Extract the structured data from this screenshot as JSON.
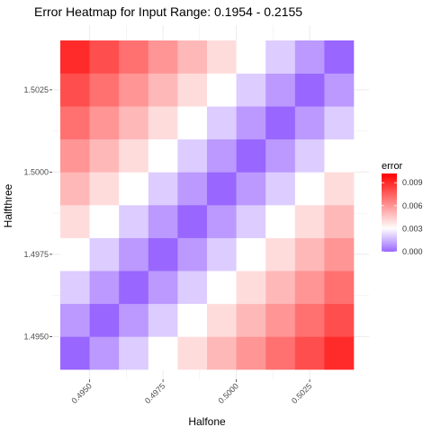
{
  "chart_data": {
    "type": "heatmap",
    "title": "Error Heatmap for Input Range: 0.1954 - 0.2155",
    "xlabel": "Halfone",
    "ylabel": "Halfthree",
    "x": [
      0.4945,
      0.4955,
      0.4965,
      0.4975,
      0.4985,
      0.4995,
      0.5005,
      0.5015,
      0.5025,
      0.5035
    ],
    "y": [
      1.4945,
      1.4955,
      1.4965,
      1.4975,
      1.4985,
      1.4995,
      1.5005,
      1.5015,
      1.5025,
      1.5035
    ],
    "xlim": [
      0.494,
      0.504
    ],
    "ylim": [
      1.494,
      1.504
    ],
    "x_ticks": [
      0.495,
      0.4975,
      0.5,
      0.5025
    ],
    "x_tick_labels": [
      "0.4950",
      "0.4975",
      "0.5000",
      "0.5025"
    ],
    "y_ticks": [
      1.495,
      1.4975,
      1.5,
      1.5025
    ],
    "y_tick_labels": [
      "1.4950",
      "1.4975",
      "1.5000",
      "1.5025"
    ],
    "z": [
      [
        0.0,
        0.001,
        0.002,
        0.003,
        0.004,
        0.005,
        0.006,
        0.007,
        0.008,
        0.009
      ],
      [
        0.001,
        0.0,
        0.001,
        0.002,
        0.003,
        0.004,
        0.005,
        0.006,
        0.007,
        0.008
      ],
      [
        0.002,
        0.001,
        0.0,
        0.001,
        0.002,
        0.003,
        0.004,
        0.005,
        0.006,
        0.007
      ],
      [
        0.003,
        0.002,
        0.001,
        0.0,
        0.001,
        0.002,
        0.003,
        0.004,
        0.005,
        0.006
      ],
      [
        0.004,
        0.003,
        0.002,
        0.001,
        0.0,
        0.001,
        0.002,
        0.003,
        0.004,
        0.005
      ],
      [
        0.005,
        0.004,
        0.003,
        0.002,
        0.001,
        0.0,
        0.001,
        0.002,
        0.003,
        0.004
      ],
      [
        0.006,
        0.005,
        0.004,
        0.003,
        0.002,
        0.001,
        0.0,
        0.001,
        0.002,
        0.003
      ],
      [
        0.007,
        0.006,
        0.005,
        0.004,
        0.003,
        0.002,
        0.001,
        0.0,
        0.001,
        0.002
      ],
      [
        0.008,
        0.007,
        0.006,
        0.005,
        0.004,
        0.003,
        0.002,
        0.001,
        0.0,
        0.001
      ],
      [
        0.009,
        0.008,
        0.007,
        0.006,
        0.005,
        0.004,
        0.003,
        0.002,
        0.001,
        0.0
      ]
    ],
    "color_scale": {
      "low": "#9966ff",
      "mid": "#ffffff",
      "high": "#ff0000",
      "midpoint": 0.003,
      "limits": [
        0.0,
        0.0102
      ]
    },
    "legend": {
      "title": "error",
      "position": "right",
      "ticks": [
        0.0,
        0.003,
        0.006,
        0.009
      ],
      "tick_labels": [
        "0.000",
        "0.003",
        "0.006",
        "0.009"
      ]
    },
    "grid": true,
    "grid_color": "#ebebeb"
  }
}
